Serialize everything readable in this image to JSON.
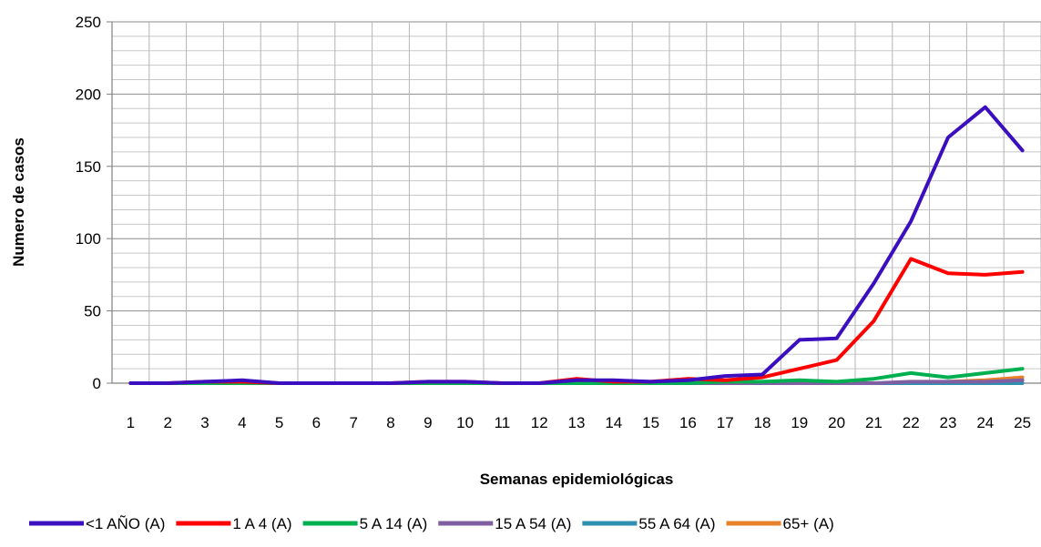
{
  "chart_data": {
    "type": "line",
    "title": "",
    "xlabel": "Semanas epidemiológicas",
    "ylabel": "Numero de casos",
    "ylim": [
      0,
      250
    ],
    "yticks": [
      0,
      50,
      100,
      150,
      200,
      250
    ],
    "y_minor_step": 10,
    "grid": true,
    "legend_position": "bottom",
    "categories": [
      "1",
      "2",
      "3",
      "4",
      "5",
      "6",
      "7",
      "8",
      "9",
      "10",
      "11",
      "12",
      "13",
      "14",
      "15",
      "16",
      "17",
      "18",
      "19",
      "20",
      "21",
      "22",
      "23",
      "24",
      "25"
    ],
    "series": [
      {
        "name": "<1 AÑO (A)",
        "color": "#3b0fbf",
        "values": [
          0,
          0,
          1,
          2,
          0,
          0,
          0,
          0,
          1,
          1,
          0,
          0,
          2,
          2,
          1,
          2,
          5,
          6,
          30,
          31,
          69,
          112,
          170,
          191,
          161
        ]
      },
      {
        "name": "1 A 4 (A)",
        "color": "#ff0000",
        "values": [
          0,
          0,
          1,
          1,
          0,
          0,
          0,
          0,
          1,
          1,
          0,
          0,
          3,
          1,
          1,
          3,
          2,
          4,
          10,
          16,
          43,
          86,
          76,
          75,
          77
        ]
      },
      {
        "name": "5 A 14 (A)",
        "color": "#00b050",
        "values": [
          0,
          0,
          0,
          0,
          0,
          0,
          0,
          0,
          0,
          0,
          0,
          0,
          0,
          0,
          0,
          0,
          1,
          1,
          2,
          1,
          3,
          7,
          4,
          7,
          10
        ]
      },
      {
        "name": "15 A 54 (A)",
        "color": "#7f5fa1",
        "values": [
          0,
          0,
          0,
          0,
          0,
          0,
          0,
          0,
          0,
          0,
          0,
          0,
          0,
          0,
          0,
          0,
          0,
          0,
          0,
          0,
          0,
          1,
          1,
          1,
          2
        ]
      },
      {
        "name": "55 A 64 (A)",
        "color": "#2e8fb0",
        "values": [
          0,
          0,
          0,
          0,
          0,
          0,
          0,
          0,
          0,
          0,
          0,
          0,
          0,
          0,
          0,
          0,
          0,
          0,
          0,
          0,
          0,
          0,
          0,
          0,
          0
        ]
      },
      {
        "name": "65+ (A)",
        "color": "#e8822a",
        "values": [
          0,
          0,
          0,
          0,
          0,
          0,
          0,
          0,
          0,
          0,
          0,
          0,
          0,
          0,
          0,
          0,
          0,
          0,
          0,
          0,
          0,
          0,
          1,
          2,
          4
        ]
      }
    ]
  }
}
